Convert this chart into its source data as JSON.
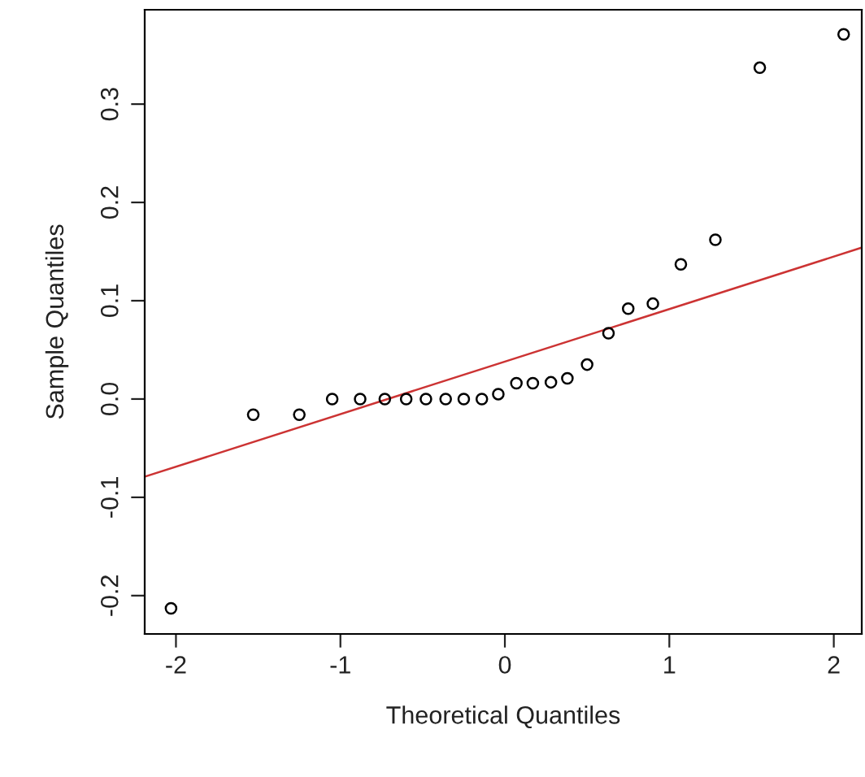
{
  "chart_data": {
    "type": "scatter",
    "xlabel": "Theoretical Quantiles",
    "ylabel": "Sample Quantiles",
    "series": [
      {
        "color": "#000000",
        "marker": "circle",
        "x": [
          -2.03,
          -1.53,
          -1.25,
          -1.05,
          -0.88,
          -0.73,
          -0.6,
          -0.48,
          -0.36,
          -0.25,
          -0.14,
          -0.04,
          0.07,
          0.17,
          0.28,
          0.38,
          0.5,
          0.63,
          0.75,
          0.9,
          1.07,
          1.28,
          1.55,
          2.06
        ],
        "values": [
          -0.213,
          -0.016,
          -0.016,
          0,
          0,
          0,
          0,
          0,
          0,
          0,
          0,
          0.005,
          0.016,
          0.016,
          0.017,
          0.021,
          0.035,
          0.067,
          0.092,
          0.097,
          0.137,
          0.162,
          0.337,
          0.371
        ]
      },
      {
        "type": "line",
        "color": "#cc3333",
        "x": [
          -2.19,
          2.17
        ],
        "values": [
          -0.079,
          0.154
        ]
      }
    ],
    "xlim": [
      -2.19,
      2.17
    ],
    "ylim": [
      -0.239,
      0.396
    ],
    "xticks": [
      -2,
      -1,
      0,
      1,
      2
    ],
    "yticks": [
      {
        "value": -0.2,
        "label": "-0.2"
      },
      {
        "value": -0.1,
        "label": "-0.1"
      },
      {
        "value": 0,
        "label": "0.0"
      },
      {
        "value": 0.1,
        "label": "0.1"
      },
      {
        "value": 0.2,
        "label": "0.2"
      },
      {
        "value": 0.3,
        "label": "0.3"
      }
    ],
    "grid": false
  }
}
